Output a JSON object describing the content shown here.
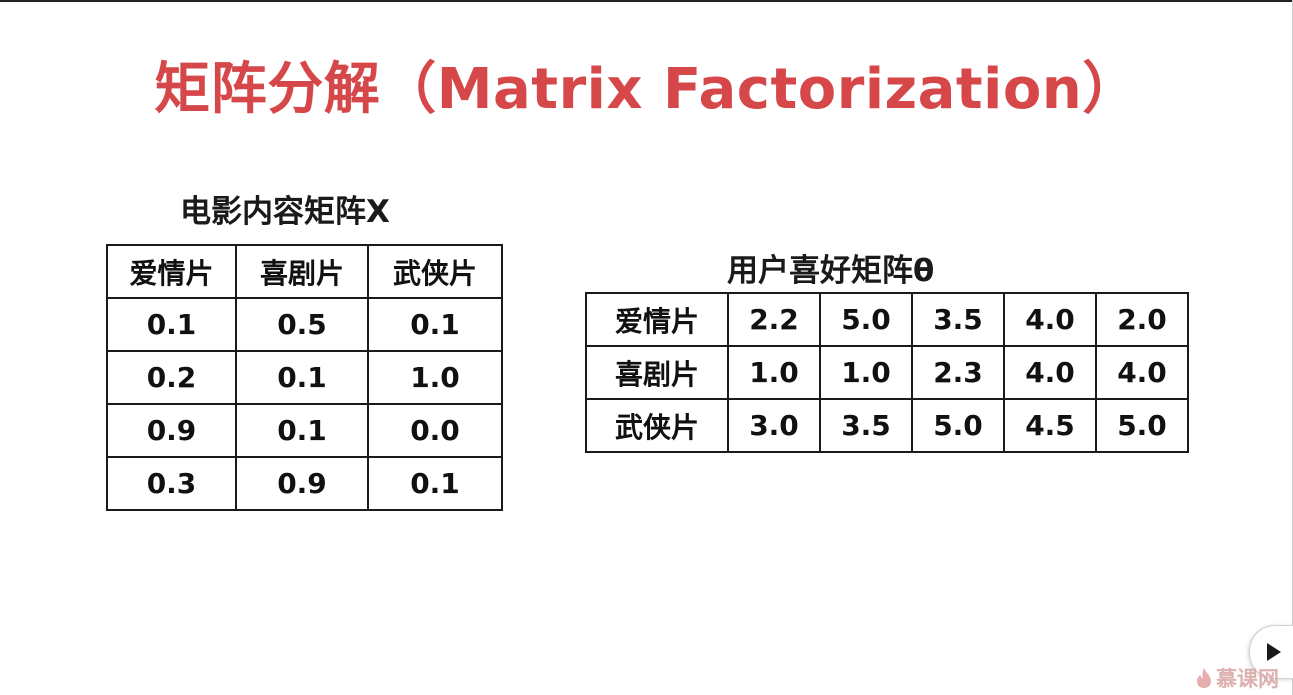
{
  "title": "矩阵分解（Matrix Factorization）",
  "movie_matrix": {
    "caption": "电影内容矩阵X",
    "headers": [
      "爱情片",
      "喜剧片",
      "武侠片"
    ],
    "rows": [
      [
        "0.1",
        "0.5",
        "0.1"
      ],
      [
        "0.2",
        "0.1",
        "1.0"
      ],
      [
        "0.9",
        "0.1",
        "0.0"
      ],
      [
        "0.3",
        "0.9",
        "0.1"
      ]
    ]
  },
  "user_matrix": {
    "caption": "用户喜好矩阵θ",
    "rows": [
      [
        "爱情片",
        "2.2",
        "5.0",
        "3.5",
        "4.0",
        "2.0"
      ],
      [
        "喜剧片",
        "1.0",
        "1.0",
        "2.3",
        "4.0",
        "4.0"
      ],
      [
        "武侠片",
        "3.0",
        "3.5",
        "5.0",
        "4.5",
        "5.0"
      ]
    ]
  },
  "player": {
    "play_icon": "play-icon",
    "watermark_icon": "flame-logo-icon",
    "watermark_text": "慕课网"
  },
  "colors": {
    "title": "#d6474a",
    "text": "#111111",
    "watermark": "#d9a3a3"
  }
}
